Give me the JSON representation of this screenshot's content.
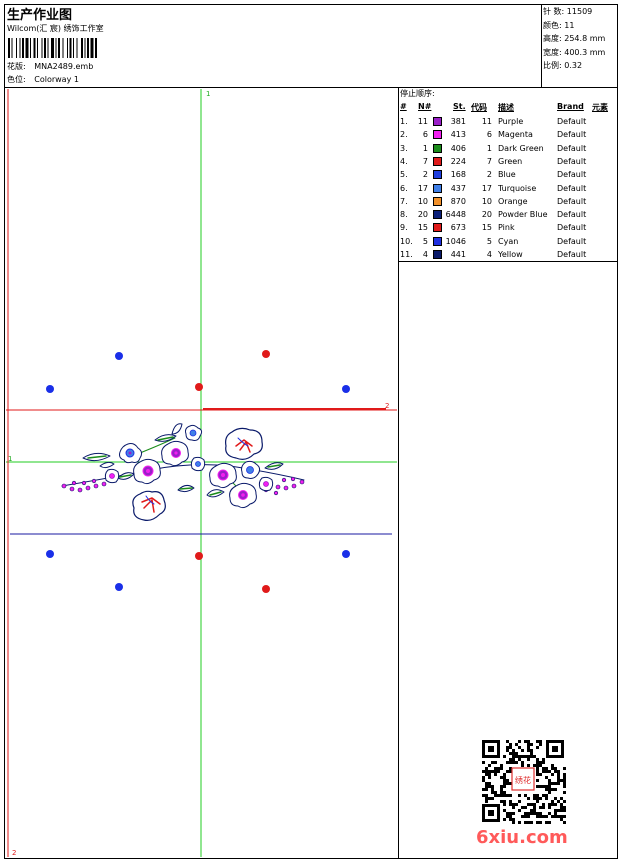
{
  "header": {
    "title": "生产作业图",
    "studio": "Wilcom(汇 宸) 绣饰工作室",
    "design_label": "花版:",
    "design_value": "MNA2489.emb",
    "colorway_label": "色位:",
    "colorway_value": "Colorway 1"
  },
  "stats": [
    {
      "label": "针 数:",
      "value": "11509"
    },
    {
      "label": "颜色:",
      "value": "11"
    },
    {
      "label": "高度:",
      "value": "254.8 mm"
    },
    {
      "label": "宽度:",
      "value": "400.3 mm"
    },
    {
      "label": "比例:",
      "value": "0.32"
    }
  ],
  "sequence": {
    "title": "停止顺序:",
    "headers": {
      "num": "#",
      "n": "N#",
      "st": "St.",
      "code": "代码",
      "desc": "描述",
      "brand": "Brand",
      "elem": "元素"
    },
    "rows": [
      {
        "num": "1.",
        "n": "11",
        "color": "#9a1fc8",
        "st": "381",
        "code": "11",
        "desc": "Purple",
        "brand": "Default"
      },
      {
        "num": "2.",
        "n": "6",
        "color": "#f21ff0",
        "st": "413",
        "code": "6",
        "desc": "Magenta",
        "brand": "Default"
      },
      {
        "num": "3.",
        "n": "1",
        "color": "#1a8c1a",
        "st": "406",
        "code": "1",
        "desc": "Dark Green",
        "brand": "Default"
      },
      {
        "num": "4.",
        "n": "7",
        "color": "#e01a1a",
        "st": "224",
        "code": "7",
        "desc": "Green",
        "brand": "Default"
      },
      {
        "num": "5.",
        "n": "2",
        "color": "#1f3fe0",
        "st": "168",
        "code": "2",
        "desc": "Blue",
        "brand": "Default"
      },
      {
        "num": "6.",
        "n": "17",
        "color": "#3f7fe8",
        "st": "437",
        "code": "17",
        "desc": "Turquoise",
        "brand": "Default"
      },
      {
        "num": "7.",
        "n": "10",
        "color": "#f2912a",
        "st": "870",
        "code": "10",
        "desc": "Orange",
        "brand": "Default"
      },
      {
        "num": "8.",
        "n": "20",
        "color": "#0a1f7a",
        "st": "6448",
        "code": "20",
        "desc": "Powder Blue",
        "brand": "Default"
      },
      {
        "num": "9.",
        "n": "15",
        "color": "#e01a1a",
        "st": "673",
        "code": "15",
        "desc": "Pink",
        "brand": "Default"
      },
      {
        "num": "10.",
        "n": "5",
        "color": "#1f2fe0",
        "st": "1046",
        "code": "5",
        "desc": "Cyan",
        "brand": "Default"
      },
      {
        "num": "11.",
        "n": "4",
        "color": "#0a1a6a",
        "st": "441",
        "code": "4",
        "desc": "Yellow",
        "brand": "Default"
      }
    ]
  },
  "canvas": {
    "guide_labels": {
      "top_1": "1",
      "left_1": "1",
      "right_2": "2",
      "bottom_2": "2"
    },
    "guide_colors": {
      "green": "#22cc22",
      "red": "#e01a1a",
      "blue": "#1a1aa0",
      "dot_blue": "#1a2fe8",
      "dot_red": "#e01a1a"
    }
  },
  "watermark": {
    "text": "6xiu.com",
    "seal": "绣花"
  }
}
